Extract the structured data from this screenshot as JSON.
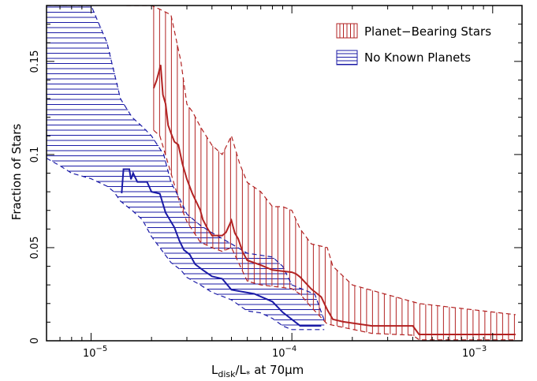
{
  "chart_data": {
    "type": "line",
    "xscale": "log",
    "xlim": [
      6e-06,
      0.0014
    ],
    "ylim": [
      0,
      0.18
    ],
    "xlabel": {
      "main": "L",
      "sub1": "disk",
      "mid": "/L",
      "sub2": "*",
      "tail": " at 70μm"
    },
    "ylabel": "Fraction of Stars",
    "x_ticks": [
      {
        "value": 1e-05,
        "mant": "10",
        "exp": "−5"
      },
      {
        "value": 0.0001,
        "mant": "10",
        "exp": "−4"
      },
      {
        "value": 0.001,
        "mant": "10",
        "exp": "−3"
      }
    ],
    "y_ticks": [
      {
        "value": 0,
        "label": "0"
      },
      {
        "value": 0.05,
        "label": "0.05"
      },
      {
        "value": 0.1,
        "label": "0.1"
      },
      {
        "value": 0.15,
        "label": "0.15"
      }
    ],
    "legend_position": "top-right",
    "series": [
      {
        "name": "Planet−Bearing Stars",
        "color": "#b22222",
        "hatch": "vertical",
        "points": [
          [
            2.05e-05,
            0.1356
          ],
          [
            2.12e-05,
            0.1398
          ],
          [
            2.17e-05,
            0.1439
          ],
          [
            2.22e-05,
            0.1481
          ],
          [
            2.28e-05,
            0.1321
          ],
          [
            2.35e-05,
            0.1272
          ],
          [
            2.42e-05,
            0.1157
          ],
          [
            2.5e-05,
            0.1115
          ],
          [
            2.6e-05,
            0.1068
          ],
          [
            2.72e-05,
            0.1052
          ],
          [
            2.85e-05,
            0.0951
          ],
          [
            3e-05,
            0.0868
          ],
          [
            3.2e-05,
            0.0789
          ],
          [
            3.5e-05,
            0.0701
          ],
          [
            3.6e-05,
            0.0651
          ],
          [
            3.8e-05,
            0.0603
          ],
          [
            4e-05,
            0.0565
          ],
          [
            4.5e-05,
            0.0565
          ],
          [
            4.7e-05,
            0.0582
          ],
          [
            5e-05,
            0.0646
          ],
          [
            5.2e-05,
            0.0578
          ],
          [
            5.4e-05,
            0.0548
          ],
          [
            5.7e-05,
            0.0474
          ],
          [
            6e-05,
            0.0432
          ],
          [
            7e-05,
            0.0406
          ],
          [
            8e-05,
            0.038
          ],
          [
            0.0001,
            0.0368
          ],
          [
            0.000105,
            0.0359
          ],
          [
            0.00011,
            0.0342
          ],
          [
            0.000125,
            0.0278
          ],
          [
            0.00014,
            0.0235
          ],
          [
            0.00015,
            0.0167
          ],
          [
            0.00016,
            0.0115
          ],
          [
            0.00018,
            0.0102
          ],
          [
            0.00025,
            0.008
          ],
          [
            0.0004,
            0.008
          ],
          [
            0.00043,
            0.0034
          ],
          [
            0.0013,
            0.0034
          ]
        ],
        "upper": [
          [
            1.5e-05,
            0.18
          ],
          [
            2e-05,
            0.18
          ],
          [
            2.2e-05,
            0.178
          ],
          [
            2.5e-05,
            0.175
          ],
          [
            2.8e-05,
            0.15
          ],
          [
            3e-05,
            0.127
          ],
          [
            3.2e-05,
            0.123
          ],
          [
            3.5e-05,
            0.115
          ],
          [
            4e-05,
            0.105
          ],
          [
            4.5e-05,
            0.1
          ],
          [
            5e-05,
            0.11
          ],
          [
            5.5e-05,
            0.095
          ],
          [
            6e-05,
            0.085
          ],
          [
            7e-05,
            0.08
          ],
          [
            8e-05,
            0.072
          ],
          [
            9e-05,
            0.072
          ],
          [
            0.0001,
            0.07
          ],
          [
            0.00011,
            0.06
          ],
          [
            0.000125,
            0.052
          ],
          [
            0.00015,
            0.05
          ],
          [
            0.00016,
            0.04
          ],
          [
            0.0002,
            0.03
          ],
          [
            0.00043,
            0.02
          ],
          [
            0.0013,
            0.014
          ]
        ],
        "lower": [
          [
            2.05e-05,
            0.113
          ],
          [
            2.2e-05,
            0.11
          ],
          [
            2.5e-05,
            0.09
          ],
          [
            2.8e-05,
            0.072
          ],
          [
            3e-05,
            0.064
          ],
          [
            3.5e-05,
            0.053
          ],
          [
            4e-05,
            0.05
          ],
          [
            4.5e-05,
            0.048
          ],
          [
            5e-05,
            0.05
          ],
          [
            5.7e-05,
            0.037
          ],
          [
            6e-05,
            0.032
          ],
          [
            7e-05,
            0.03
          ],
          [
            0.0001,
            0.028
          ],
          [
            0.00011,
            0.025
          ],
          [
            0.000125,
            0.018
          ],
          [
            0.00015,
            0.009
          ],
          [
            0.00025,
            0.004
          ],
          [
            0.0004,
            0.003
          ],
          [
            0.00043,
            0.0005
          ],
          [
            0.0013,
            0.0005
          ]
        ]
      },
      {
        "name": "No Known Planets",
        "color": "#1a1aa6",
        "hatch": "horizontal",
        "points": [
          [
            1.42e-05,
            0.0792
          ],
          [
            1.45e-05,
            0.0921
          ],
          [
            1.55e-05,
            0.0921
          ],
          [
            1.58e-05,
            0.0867
          ],
          [
            1.62e-05,
            0.09
          ],
          [
            1.7e-05,
            0.0853
          ],
          [
            1.9e-05,
            0.0853
          ],
          [
            2e-05,
            0.08
          ],
          [
            2.2e-05,
            0.079
          ],
          [
            2.35e-05,
            0.0688
          ],
          [
            2.6e-05,
            0.0608
          ],
          [
            2.75e-05,
            0.0538
          ],
          [
            2.9e-05,
            0.0488
          ],
          [
            3.1e-05,
            0.0463
          ],
          [
            3.3e-05,
            0.0411
          ],
          [
            3.6e-05,
            0.038
          ],
          [
            4e-05,
            0.0346
          ],
          [
            4.5e-05,
            0.0333
          ],
          [
            5e-05,
            0.0274
          ],
          [
            6.5e-05,
            0.0252
          ],
          [
            8e-05,
            0.021
          ],
          [
            9e-05,
            0.0153
          ],
          [
            0.00011,
            0.008
          ],
          [
            0.00014,
            0.008
          ]
        ],
        "upper": [
          [
            6e-06,
            0.18
          ],
          [
            1e-05,
            0.18
          ],
          [
            1.2e-05,
            0.16
          ],
          [
            1.4e-05,
            0.13
          ],
          [
            1.6e-05,
            0.12
          ],
          [
            1.8e-05,
            0.115
          ],
          [
            2e-05,
            0.11
          ],
          [
            2.3e-05,
            0.1
          ],
          [
            2.5e-05,
            0.085
          ],
          [
            2.8e-05,
            0.075
          ],
          [
            3e-05,
            0.068
          ],
          [
            3.5e-05,
            0.062
          ],
          [
            4e-05,
            0.058
          ],
          [
            5e-05,
            0.052
          ],
          [
            6e-05,
            0.047
          ],
          [
            8e-05,
            0.045
          ],
          [
            9e-05,
            0.04
          ],
          [
            0.0001,
            0.03
          ],
          [
            0.00013,
            0.025
          ],
          [
            0.000145,
            0.011
          ]
        ],
        "lower": [
          [
            6e-06,
            0.098
          ],
          [
            7e-06,
            0.094
          ],
          [
            8e-06,
            0.09
          ],
          [
            1e-05,
            0.087
          ],
          [
            1.2e-05,
            0.083
          ],
          [
            1.3e-05,
            0.08
          ],
          [
            1.4e-05,
            0.075
          ],
          [
            1.6e-05,
            0.07
          ],
          [
            1.8e-05,
            0.065
          ],
          [
            2e-05,
            0.056
          ],
          [
            2.5e-05,
            0.042
          ],
          [
            2.8e-05,
            0.038
          ],
          [
            3e-05,
            0.034
          ],
          [
            3.5e-05,
            0.03
          ],
          [
            4e-05,
            0.026
          ],
          [
            5e-05,
            0.022
          ],
          [
            6e-05,
            0.016
          ],
          [
            7e-05,
            0.015
          ],
          [
            8e-05,
            0.012
          ],
          [
            9e-05,
            0.008
          ],
          [
            0.0001,
            0.006
          ],
          [
            0.000145,
            0.006
          ]
        ]
      }
    ]
  }
}
